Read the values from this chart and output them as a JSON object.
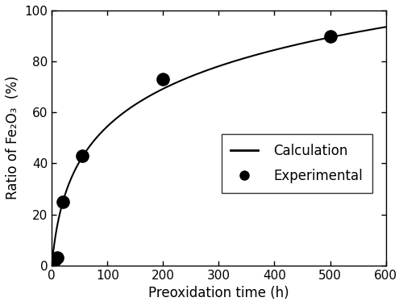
{
  "exp_x": [
    5,
    10,
    20,
    55,
    200,
    500
  ],
  "exp_y": [
    2,
    3,
    25,
    43,
    73,
    90
  ],
  "curve_a": 22.75,
  "curve_b": 0.1,
  "xlim": [
    0,
    600
  ],
  "ylim": [
    0,
    100
  ],
  "xticks": [
    0,
    100,
    200,
    300,
    400,
    500,
    600
  ],
  "yticks": [
    0,
    20,
    40,
    60,
    80,
    100
  ],
  "xlabel": "Preoxidation time (h)",
  "ylabel": "Ratio of Fe₂O₃  (%)",
  "line_color": "#000000",
  "marker_color": "#000000",
  "background_color": "#ffffff",
  "legend_labels": [
    "Calculation",
    "Experimental"
  ],
  "fontsize_labels": 12,
  "fontsize_ticks": 11,
  "fontsize_legend": 12
}
